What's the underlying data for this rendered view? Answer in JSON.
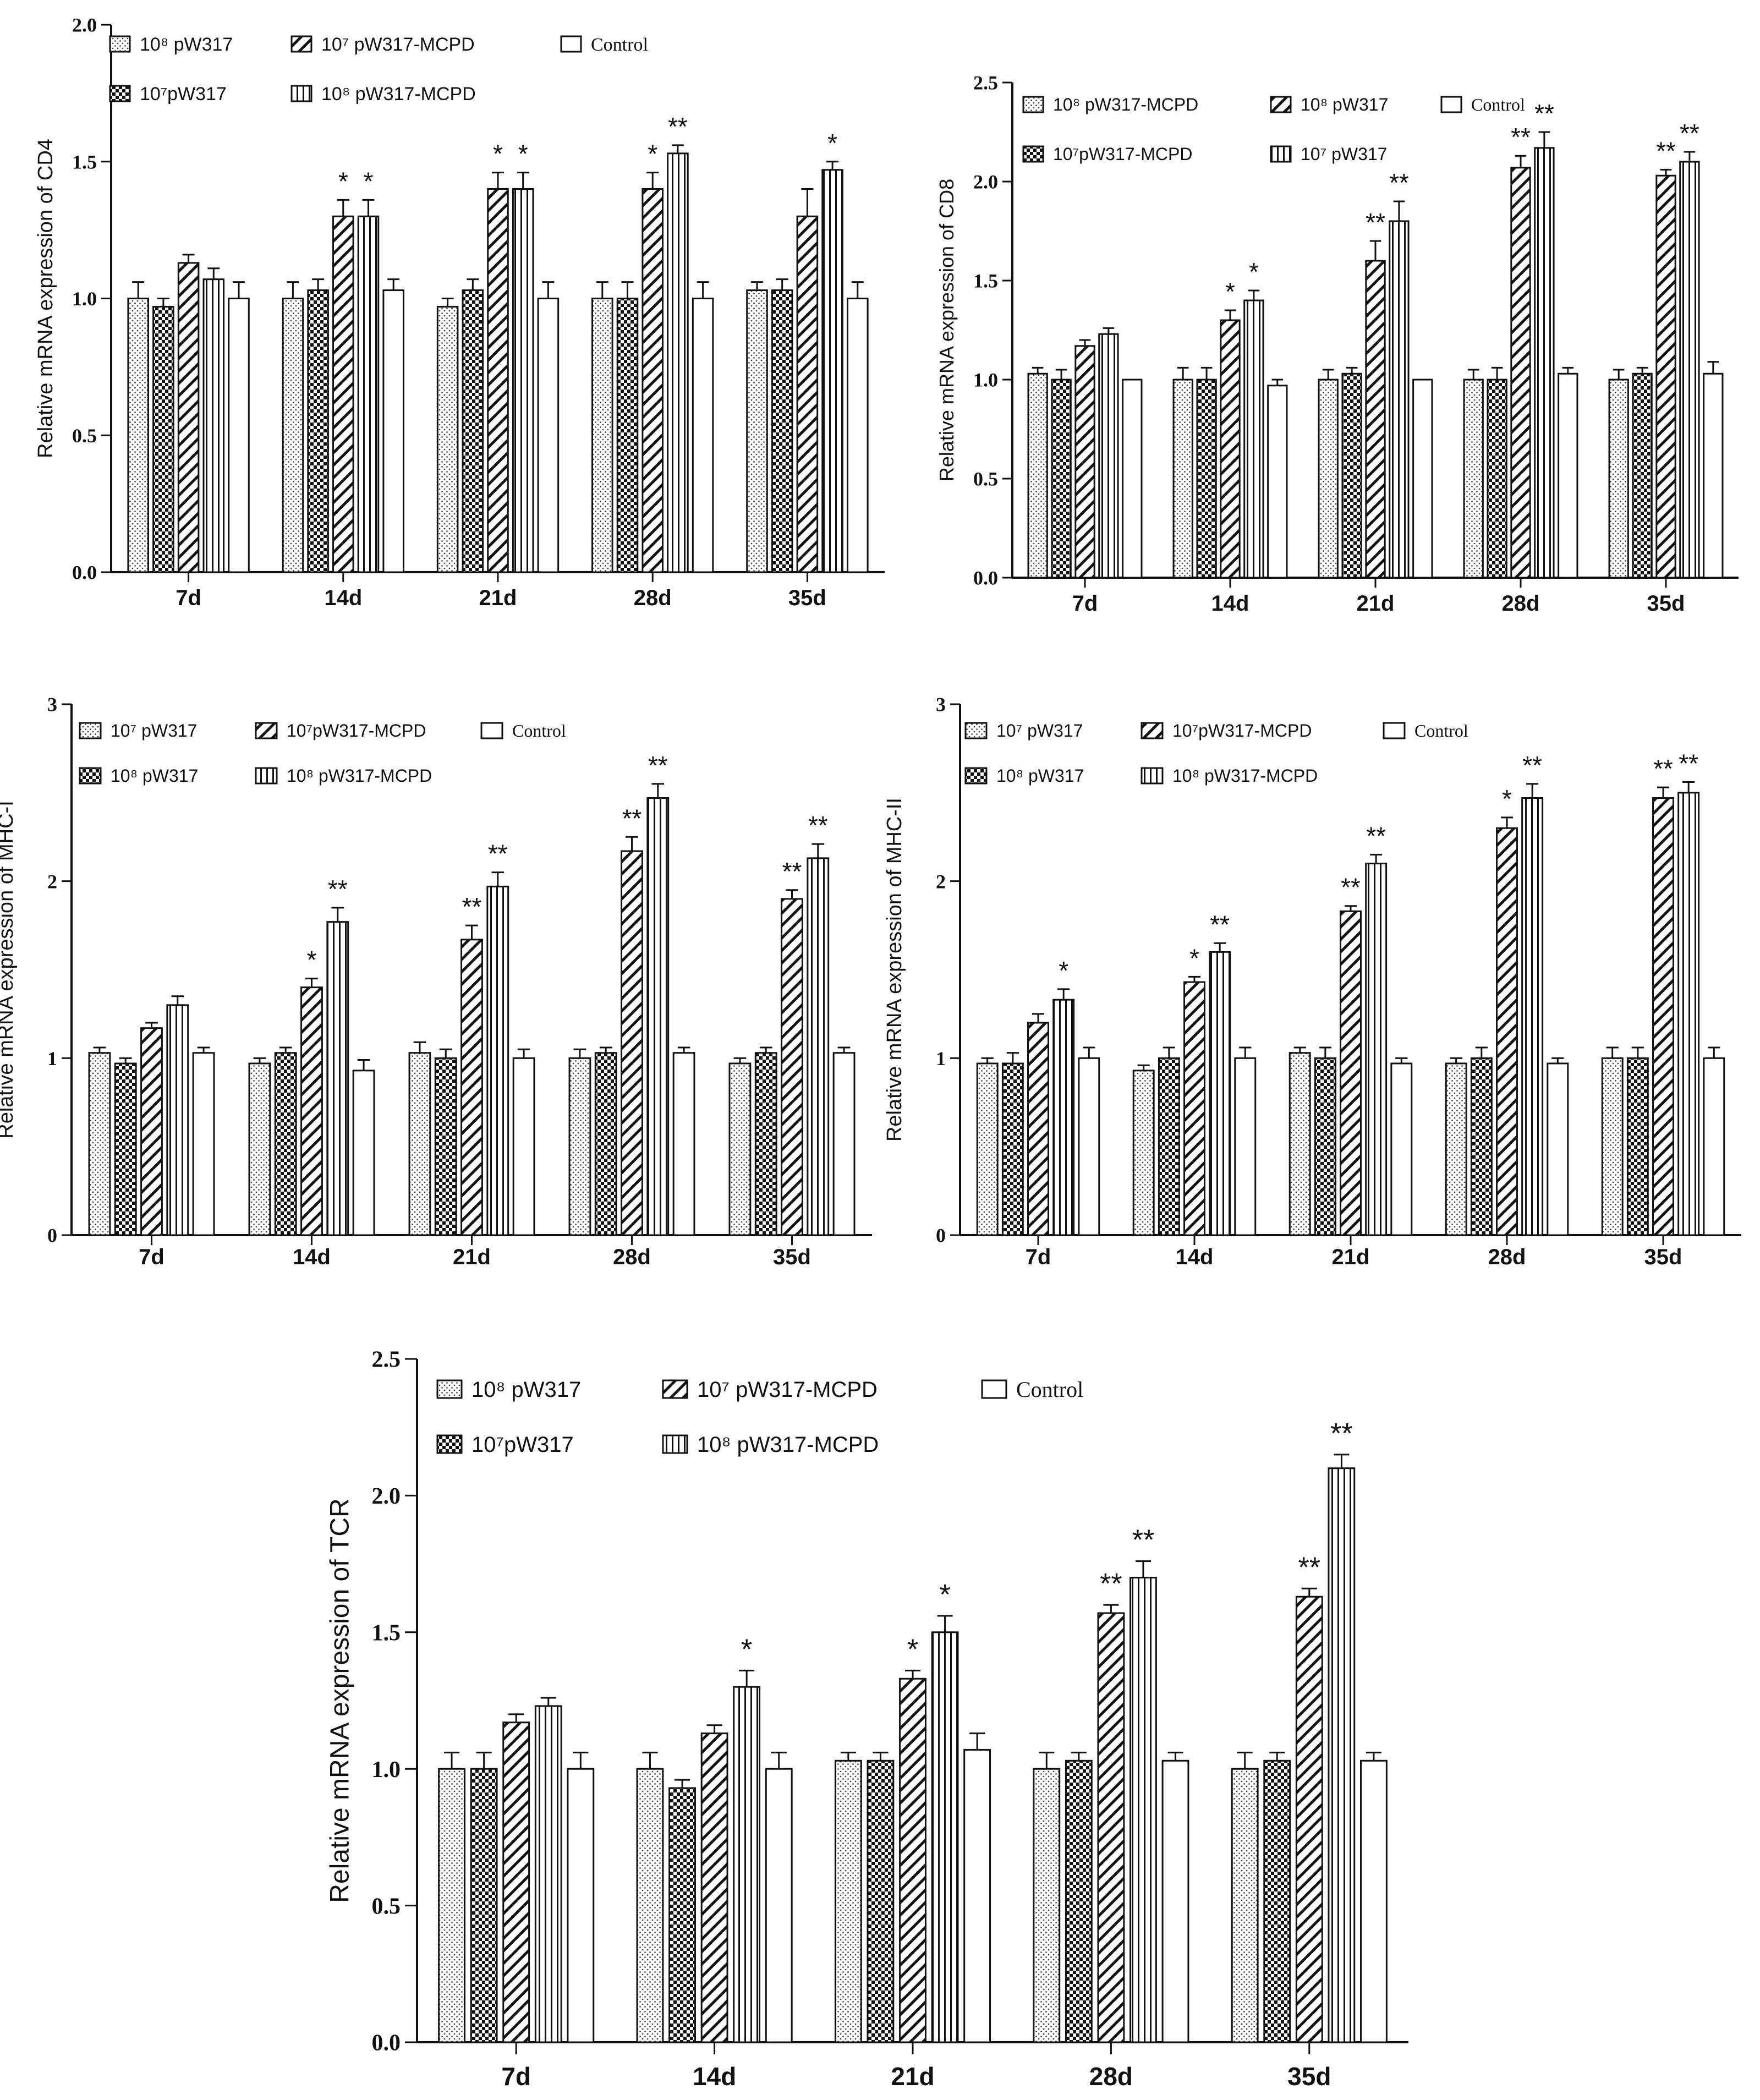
{
  "chart_data": [
    {
      "id": "cd4",
      "type": "bar",
      "ylabel": "Relative mRNA expression of CD4",
      "ylim": [
        0,
        2.0
      ],
      "yticks": [
        "0.0",
        "0.5",
        "1.0",
        "1.5",
        "2.0"
      ],
      "categories": [
        "7d",
        "14d",
        "21d",
        "28d",
        "35d"
      ],
      "series": [
        {
          "name": "10⁸ pW317",
          "pattern": "dots",
          "values": [
            1.0,
            1.0,
            0.97,
            1.0,
            1.03
          ],
          "errors": [
            0.06,
            0.06,
            0.03,
            0.06,
            0.03
          ],
          "sig": [
            "",
            "",
            "",
            "",
            ""
          ]
        },
        {
          "name": "10⁷pW317",
          "pattern": "checker",
          "values": [
            0.97,
            1.03,
            1.03,
            1.0,
            1.03
          ],
          "errors": [
            0.03,
            0.04,
            0.04,
            0.06,
            0.04
          ],
          "sig": [
            "",
            "",
            "",
            "",
            ""
          ]
        },
        {
          "name": "10⁷ pW317-MCPD",
          "pattern": "diag",
          "values": [
            1.13,
            1.3,
            1.4,
            1.4,
            1.3
          ],
          "errors": [
            0.03,
            0.06,
            0.06,
            0.06,
            0.1
          ],
          "sig": [
            "",
            "*",
            "*",
            "*",
            ""
          ]
        },
        {
          "name": "10⁸ pW317-MCPD",
          "pattern": "vert",
          "values": [
            1.07,
            1.3,
            1.4,
            1.53,
            1.47
          ],
          "errors": [
            0.04,
            0.06,
            0.06,
            0.03,
            0.03
          ],
          "sig": [
            "",
            "*",
            "*",
            "**",
            "*"
          ]
        },
        {
          "name": "Control",
          "pattern": "none",
          "values": [
            1.0,
            1.03,
            1.0,
            1.0,
            1.0
          ],
          "errors": [
            0.06,
            0.04,
            0.06,
            0.06,
            0.06
          ],
          "sig": [
            "",
            "",
            "",
            "",
            ""
          ]
        }
      ],
      "legend": [
        {
          "label": "10⁸ pW317",
          "pattern": "dots"
        },
        {
          "label": "10⁷ pW317-MCPD",
          "pattern": "diag"
        },
        {
          "label": "Control",
          "pattern": "none"
        },
        {
          "label": "10⁷pW317",
          "pattern": "checker"
        },
        {
          "label": "10⁸ pW317-MCPD",
          "pattern": "vert"
        }
      ]
    },
    {
      "id": "cd8",
      "type": "bar",
      "ylabel": "Relative mRNA expression of CD8",
      "ylim": [
        0,
        2.5
      ],
      "yticks": [
        "0.0",
        "0.5",
        "1.0",
        "1.5",
        "2.0",
        "2.5"
      ],
      "categories": [
        "7d",
        "14d",
        "21d",
        "28d",
        "35d"
      ],
      "series": [
        {
          "name": "10⁸ pW317-MCPD",
          "pattern": "dots",
          "values": [
            1.03,
            1.0,
            1.0,
            1.0,
            1.0
          ],
          "errors": [
            0.03,
            0.06,
            0.05,
            0.05,
            0.05
          ],
          "sig": [
            "",
            "",
            "",
            "",
            ""
          ]
        },
        {
          "name": "10⁷pW317-MCPD",
          "pattern": "checker",
          "values": [
            1.0,
            1.0,
            1.03,
            1.0,
            1.03
          ],
          "errors": [
            0.05,
            0.06,
            0.03,
            0.06,
            0.03
          ],
          "sig": [
            "",
            "",
            "",
            "",
            ""
          ]
        },
        {
          "name": "10⁸ pW317",
          "pattern": "diag",
          "values": [
            1.17,
            1.3,
            1.6,
            2.07,
            2.03
          ],
          "errors": [
            0.03,
            0.05,
            0.1,
            0.06,
            0.03
          ],
          "sig": [
            "",
            "*",
            "**",
            "**",
            "**"
          ]
        },
        {
          "name": "10⁷ pW317",
          "pattern": "vert",
          "values": [
            1.23,
            1.4,
            1.8,
            2.17,
            2.1
          ],
          "errors": [
            0.03,
            0.05,
            0.1,
            0.08,
            0.05
          ],
          "sig": [
            "",
            "*",
            "**",
            "**",
            "**"
          ]
        },
        {
          "name": "Control",
          "pattern": "none",
          "values": [
            1.0,
            0.97,
            1.0,
            1.03,
            1.03
          ],
          "errors": [
            0.0,
            0.03,
            0.0,
            0.03,
            0.06
          ],
          "sig": [
            "",
            "",
            "",
            "",
            ""
          ]
        }
      ],
      "legend": [
        {
          "label": "10⁸ pW317-MCPD",
          "pattern": "dots"
        },
        {
          "label": "10⁸ pW317",
          "pattern": "diag"
        },
        {
          "label": "Control",
          "pattern": "none"
        },
        {
          "label": "10⁷pW317-MCPD",
          "pattern": "checker"
        },
        {
          "label": "10⁷ pW317",
          "pattern": "vert"
        }
      ]
    },
    {
      "id": "mhc1",
      "type": "bar",
      "ylabel": "Relative mRNA expression of MHC-I",
      "ylim": [
        0,
        3
      ],
      "yticks": [
        "0",
        "1",
        "2",
        "3"
      ],
      "categories": [
        "7d",
        "14d",
        "21d",
        "28d",
        "35d"
      ],
      "series": [
        {
          "name": "10⁷ pW317",
          "pattern": "dots",
          "values": [
            1.03,
            0.97,
            1.03,
            1.0,
            0.97
          ],
          "errors": [
            0.03,
            0.03,
            0.06,
            0.05,
            0.03
          ],
          "sig": [
            "",
            "",
            "",
            "",
            ""
          ]
        },
        {
          "name": "10⁸ pW317",
          "pattern": "checker",
          "values": [
            0.97,
            1.03,
            1.0,
            1.03,
            1.03
          ],
          "errors": [
            0.03,
            0.03,
            0.05,
            0.03,
            0.03
          ],
          "sig": [
            "",
            "",
            "",
            "",
            ""
          ]
        },
        {
          "name": "10⁷pW317-MCPD",
          "pattern": "diag",
          "values": [
            1.17,
            1.4,
            1.67,
            2.17,
            1.9
          ],
          "errors": [
            0.03,
            0.05,
            0.08,
            0.08,
            0.05
          ],
          "sig": [
            "",
            "*",
            "**",
            "**",
            "**"
          ]
        },
        {
          "name": "10⁸ pW317-MCPD",
          "pattern": "vert",
          "values": [
            1.3,
            1.77,
            1.97,
            2.47,
            2.13
          ],
          "errors": [
            0.05,
            0.08,
            0.08,
            0.08,
            0.08
          ],
          "sig": [
            "",
            "**",
            "**",
            "**",
            "**"
          ]
        },
        {
          "name": "Control",
          "pattern": "none",
          "values": [
            1.03,
            0.93,
            1.0,
            1.03,
            1.03
          ],
          "errors": [
            0.03,
            0.06,
            0.05,
            0.03,
            0.03
          ],
          "sig": [
            "",
            "",
            "",
            "",
            ""
          ]
        }
      ],
      "legend": [
        {
          "label": "10⁷ pW317",
          "pattern": "dots"
        },
        {
          "label": "10⁷pW317-MCPD",
          "pattern": "diag"
        },
        {
          "label": "Control",
          "pattern": "none"
        },
        {
          "label": "10⁸ pW317",
          "pattern": "checker"
        },
        {
          "label": "10⁸ pW317-MCPD",
          "pattern": "vert"
        }
      ]
    },
    {
      "id": "mhc2",
      "type": "bar",
      "ylabel": "Relative mRNA expression of MHC-II",
      "ylim": [
        0,
        3
      ],
      "yticks": [
        "0",
        "1",
        "2",
        "3"
      ],
      "categories": [
        "7d",
        "14d",
        "21d",
        "28d",
        "35d"
      ],
      "series": [
        {
          "name": "10⁷ pW317",
          "pattern": "dots",
          "values": [
            0.97,
            0.93,
            1.03,
            0.97,
            1.0
          ],
          "errors": [
            0.03,
            0.03,
            0.03,
            0.03,
            0.06
          ],
          "sig": [
            "",
            "",
            "",
            "",
            ""
          ]
        },
        {
          "name": "10⁸ pW317",
          "pattern": "checker",
          "values": [
            0.97,
            1.0,
            1.0,
            1.0,
            1.0
          ],
          "errors": [
            0.06,
            0.06,
            0.06,
            0.06,
            0.06
          ],
          "sig": [
            "",
            "",
            "",
            "",
            ""
          ]
        },
        {
          "name": "10⁷pW317-MCPD",
          "pattern": "diag",
          "values": [
            1.2,
            1.43,
            1.83,
            2.3,
            2.47
          ],
          "errors": [
            0.05,
            0.03,
            0.03,
            0.06,
            0.06
          ],
          "sig": [
            "",
            "*",
            "**",
            "*",
            "**"
          ]
        },
        {
          "name": "10⁸ pW317-MCPD",
          "pattern": "vert",
          "values": [
            1.33,
            1.6,
            2.1,
            2.47,
            2.5
          ],
          "errors": [
            0.06,
            0.05,
            0.05,
            0.08,
            0.06
          ],
          "sig": [
            "*",
            "**",
            "**",
            "**",
            "**"
          ]
        },
        {
          "name": "Control",
          "pattern": "none",
          "values": [
            1.0,
            1.0,
            0.97,
            0.97,
            1.0
          ],
          "errors": [
            0.06,
            0.06,
            0.03,
            0.03,
            0.06
          ],
          "sig": [
            "",
            "",
            "",
            "",
            ""
          ]
        }
      ],
      "legend": [
        {
          "label": "10⁷ pW317",
          "pattern": "dots"
        },
        {
          "label": "10⁷pW317-MCPD",
          "pattern": "diag"
        },
        {
          "label": "Control",
          "pattern": "none"
        },
        {
          "label": "10⁸ pW317",
          "pattern": "checker"
        },
        {
          "label": "10⁸ pW317-MCPD",
          "pattern": "vert"
        }
      ]
    },
    {
      "id": "tcr",
      "type": "bar",
      "ylabel": "Relative mRNA expression of TCR",
      "ylim": [
        0,
        2.5
      ],
      "yticks": [
        "0.0",
        "0.5",
        "1.0",
        "1.5",
        "2.0",
        "2.5"
      ],
      "categories": [
        "7d",
        "14d",
        "21d",
        "28d",
        "35d"
      ],
      "series": [
        {
          "name": "10⁸ pW317",
          "pattern": "dots",
          "values": [
            1.0,
            1.0,
            1.03,
            1.0,
            1.0
          ],
          "errors": [
            0.06,
            0.06,
            0.03,
            0.06,
            0.06
          ],
          "sig": [
            "",
            "",
            "",
            "",
            ""
          ]
        },
        {
          "name": "10⁷pW317",
          "pattern": "checker",
          "values": [
            1.0,
            0.93,
            1.03,
            1.03,
            1.03
          ],
          "errors": [
            0.06,
            0.03,
            0.03,
            0.03,
            0.03
          ],
          "sig": [
            "",
            "",
            "",
            "",
            ""
          ]
        },
        {
          "name": "10⁷ pW317-MCPD",
          "pattern": "diag",
          "values": [
            1.17,
            1.13,
            1.33,
            1.57,
            1.63
          ],
          "errors": [
            0.03,
            0.03,
            0.03,
            0.03,
            0.03
          ],
          "sig": [
            "",
            "",
            "*",
            "**",
            "**"
          ]
        },
        {
          "name": "10⁸ pW317-MCPD",
          "pattern": "vert",
          "values": [
            1.23,
            1.3,
            1.5,
            1.7,
            2.1
          ],
          "errors": [
            0.03,
            0.06,
            0.06,
            0.06,
            0.05
          ],
          "sig": [
            "",
            "*",
            "*",
            "**",
            "**"
          ]
        },
        {
          "name": "Control",
          "pattern": "none",
          "values": [
            1.0,
            1.0,
            1.07,
            1.03,
            1.03
          ],
          "errors": [
            0.06,
            0.06,
            0.06,
            0.03,
            0.03
          ],
          "sig": [
            "",
            "",
            "",
            "",
            ""
          ]
        }
      ],
      "legend": [
        {
          "label": "10⁸ pW317",
          "pattern": "dots"
        },
        {
          "label": "10⁷ pW317-MCPD",
          "pattern": "diag"
        },
        {
          "label": "Control",
          "pattern": "none"
        },
        {
          "label": "10⁷pW317",
          "pattern": "checker"
        },
        {
          "label": "10⁸ pW317-MCPD",
          "pattern": "vert"
        }
      ]
    }
  ]
}
